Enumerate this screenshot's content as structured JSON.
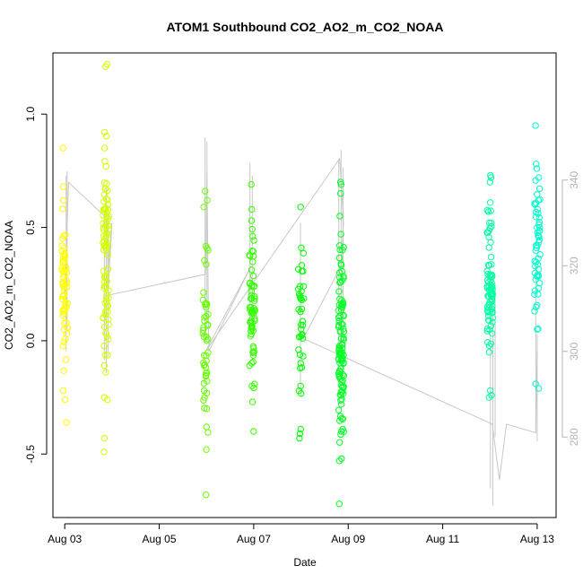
{
  "chart_data": {
    "type": "scatter",
    "title": "ATOM1 Southbound CO2_AO2_m_CO2_NOAA",
    "xlabel": "Date",
    "ylabel": "CO2_AO2_m_CO2_NOAA",
    "x_unit": "days since Aug 03",
    "xlim": [
      -0.25,
      10.4
    ],
    "ylim": [
      -0.78,
      1.27
    ],
    "y2lim": [
      261.2,
      369.7
    ],
    "x_ticks": [
      0,
      2,
      4,
      6,
      8,
      10
    ],
    "x_tick_labels": [
      "Aug 03",
      "Aug 05",
      "Aug 07",
      "Aug 09",
      "Aug 11",
      "Aug 13"
    ],
    "y_ticks": [
      -0.5,
      0.0,
      0.5,
      1.0
    ],
    "y_tick_labels": [
      "-0.5",
      "0.0",
      "0.5",
      "1.0"
    ],
    "y2_ticks": [
      280,
      300,
      320,
      340
    ],
    "y2_tick_labels": [
      "280",
      "300",
      "320",
      "340"
    ],
    "grid": false,
    "point_color_scale": [
      "#ffff00",
      "#00ff00",
      "#00ffcc"
    ],
    "right_series_color": "#c8c8c8",
    "groups": [
      {
        "x": 0.0,
        "ymin": -0.36,
        "ymax": 0.85,
        "n": 50,
        "extras": [
          0.36,
          0.37,
          0.35,
          0.38,
          0.14,
          0.12,
          0.15,
          0.13,
          0.62,
          0.68,
          0.85,
          -0.22,
          -0.26,
          -0.36,
          0.05,
          0.2
        ]
      },
      {
        "x": 0.87,
        "ymin": -0.49,
        "ymax": 1.22,
        "n": 80,
        "extras": [
          1.22,
          1.21,
          0.92,
          0.85,
          -0.49,
          -0.43,
          -0.26,
          -0.25,
          0.42,
          0.43,
          0.41
        ]
      },
      {
        "x": 2.98,
        "ymin": -0.68,
        "ymax": 0.66,
        "n": 45,
        "extras": [
          -0.68,
          -0.48,
          -0.3,
          -0.25,
          0.66,
          0.62,
          0.59
        ]
      },
      {
        "x": 3.97,
        "ymin": -0.4,
        "ymax": 0.69,
        "n": 60,
        "extras": [
          0.69,
          -0.4,
          -0.27,
          -0.2,
          0.53,
          0.58
        ]
      },
      {
        "x": 5.0,
        "ymin": -0.43,
        "ymax": 0.59,
        "n": 35,
        "extras": [
          0.59,
          -0.43,
          -0.41,
          -0.39,
          0.41,
          0.24
        ]
      },
      {
        "x": 5.85,
        "ymin": -0.72,
        "ymax": 0.7,
        "n": 100,
        "extras": [
          -0.72,
          -0.53,
          -0.52,
          -0.4,
          0.7,
          0.69,
          0.65,
          0.55,
          0.47,
          -0.15,
          -0.16
        ]
      },
      {
        "x": 9.0,
        "ymin": -0.25,
        "ymax": 0.73,
        "n": 75,
        "extras": [
          0.73,
          0.72,
          0.7,
          0.61,
          0.57,
          -0.25,
          -0.24,
          -0.22,
          0.52
        ]
      },
      {
        "x": 10.0,
        "ymin": -0.21,
        "ymax": 0.95,
        "n": 50,
        "extras": [
          0.95,
          0.78,
          0.76,
          0.72,
          0.62,
          0.58,
          -0.21,
          -0.19,
          0.05
        ]
      }
    ],
    "co2_ppm_overview_segments": [
      [
        0.0,
        312.0
      ],
      [
        0.08,
        339.5
      ],
      [
        0.9,
        331.0
      ],
      [
        0.92,
        314.0
      ],
      [
        1.0,
        330.0
      ],
      [
        0.87,
        313.0
      ],
      [
        2.98,
        318.0
      ],
      [
        3.01,
        342.0
      ],
      [
        3.05,
        300.0
      ],
      [
        3.95,
        320.0
      ],
      [
        2.98,
        300.0
      ],
      [
        5.82,
        345.0
      ],
      [
        5.9,
        330.0
      ],
      [
        5.85,
        320.0
      ],
      [
        5.05,
        303.0
      ],
      [
        9.05,
        283.0
      ],
      [
        9.2,
        270.0
      ],
      [
        9.35,
        283.0
      ],
      [
        9.97,
        281.0
      ],
      [
        10.0,
        300.0
      ]
    ],
    "co2_ppm_spikes": [
      {
        "x": 0.03,
        "low": 300,
        "high": 341
      },
      {
        "x": 0.05,
        "low": 305,
        "high": 342
      },
      {
        "x": 0.84,
        "low": 298,
        "high": 333
      },
      {
        "x": 0.88,
        "low": 295,
        "high": 338
      },
      {
        "x": 0.92,
        "low": 300,
        "high": 332
      },
      {
        "x": 2.97,
        "low": 302,
        "high": 350
      },
      {
        "x": 3.01,
        "low": 305,
        "high": 349
      },
      {
        "x": 3.92,
        "low": 306,
        "high": 344
      },
      {
        "x": 3.97,
        "low": 310,
        "high": 341
      },
      {
        "x": 4.99,
        "low": 290,
        "high": 330
      },
      {
        "x": 5.8,
        "low": 295,
        "high": 345
      },
      {
        "x": 5.85,
        "low": 300,
        "high": 347
      },
      {
        "x": 5.89,
        "low": 290,
        "high": 343
      },
      {
        "x": 9.01,
        "low": 268,
        "high": 305
      },
      {
        "x": 9.06,
        "low": 264,
        "high": 318
      },
      {
        "x": 9.11,
        "low": 280,
        "high": 316
      },
      {
        "x": 9.97,
        "low": 281,
        "high": 320
      },
      {
        "x": 10.0,
        "low": 279,
        "high": 304
      }
    ]
  }
}
